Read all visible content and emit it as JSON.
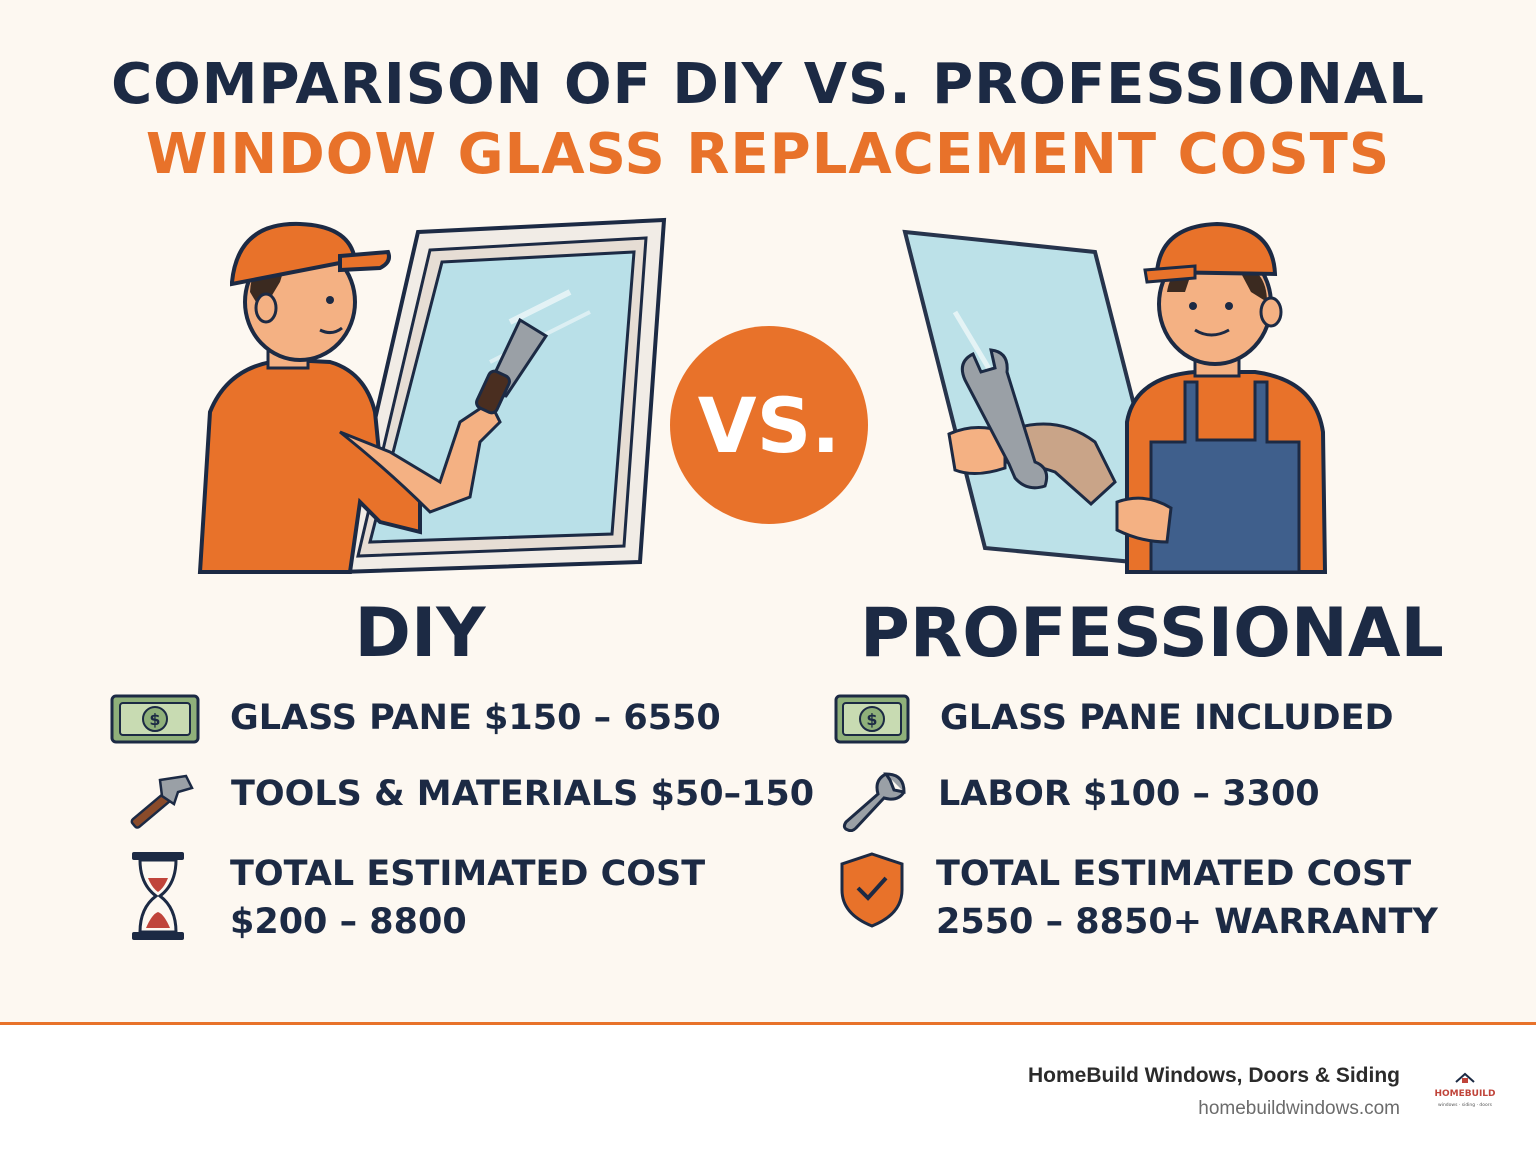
{
  "title": {
    "line1": "COMPARISON OF DIY VS. PROFESSIONAL",
    "line2": "WINDOW GLASS REPLACEMENT COSTS"
  },
  "vs_label": "VS.",
  "diy": {
    "heading": "DIY",
    "items": [
      {
        "icon": "money-icon",
        "text": "GLASS PANE  $150 – 6550"
      },
      {
        "icon": "hammer-icon",
        "text": "TOOLS & MATERIALS $50–150"
      },
      {
        "icon": "hourglass-icon",
        "text": "TOTAL ESTIMATED COST",
        "text2": "$200 – 8800"
      }
    ]
  },
  "professional": {
    "heading": "PROFESSIONAL",
    "items": [
      {
        "icon": "money-icon",
        "text": "GLASS PANE INCLUDED"
      },
      {
        "icon": "wrench-icon",
        "text": "LABOR  $100 – 3300"
      },
      {
        "icon": "shield-check-icon",
        "text": "TOTAL ESTIMATED COST",
        "text2": "2550 – 8850+ WARRANTY"
      }
    ]
  },
  "footer": {
    "brand": "HomeBuild Windows, Doors & Siding",
    "url": "homebuildwindows.com",
    "logo_text": "HOMEBUILD",
    "logo_tagline": "windows · siding · doors"
  },
  "colors": {
    "background": "#fdf8f1",
    "navy": "#1c2a44",
    "orange": "#e8722a",
    "glass": "#b9e0e8"
  }
}
